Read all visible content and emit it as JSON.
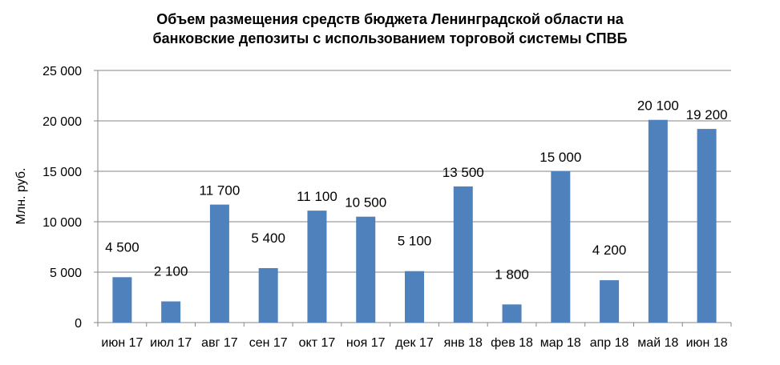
{
  "chart_data": {
    "type": "bar",
    "title": "Объем размещения средств бюджета Ленинградской области на банковские депозиты с использованием торговой системы СПВБ",
    "title_lines": [
      "Объем размещения средств бюджета Ленинградской области на",
      "банковские депозиты с  использованием торговой системы СПВБ"
    ],
    "xlabel": "",
    "ylabel": "Млн. руб.",
    "categories": [
      "июн 17",
      "июл 17",
      "авг 17",
      "сен 17",
      "окт 17",
      "ноя 17",
      "дек 17",
      "янв 18",
      "фев 18",
      "мар 18",
      "апр 18",
      "май 18",
      "июн 18"
    ],
    "values": [
      4500,
      2100,
      11700,
      5400,
      11100,
      10500,
      5100,
      13500,
      1800,
      15000,
      4200,
      20100,
      19200
    ],
    "data_labels": [
      "4 500",
      "2 100",
      "11 700",
      "5 400",
      "11 100",
      "10 500",
      "5 100",
      "13 500",
      "1 800",
      "15 000",
      "4 200",
      "20 100",
      "19 200"
    ],
    "y_ticks": [
      0,
      5000,
      10000,
      15000,
      20000,
      25000
    ],
    "y_tick_labels": [
      "0",
      "5 000",
      "10 000",
      "15 000",
      "20 000",
      "25 000"
    ],
    "ylim": [
      0,
      25000
    ],
    "grid": true,
    "legend": "none",
    "bar_color": "#4F81BD"
  }
}
